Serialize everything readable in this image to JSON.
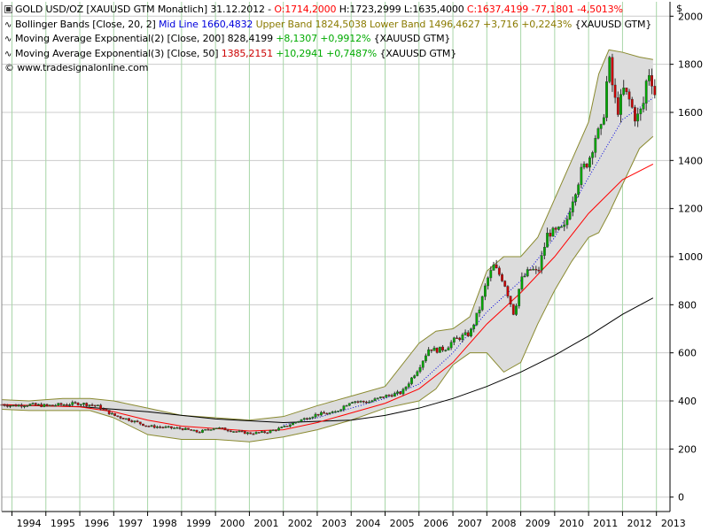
{
  "legend": {
    "line1": {
      "symbol": "GOLD USD/OZ [XAUUSD GTM  Monatlich] 31.12.2012 -",
      "open": "O:1714,2000",
      "high_low": "H:1723,2999 L:1635,4000",
      "close": "C:1637,4199 -77,1801 -4,5013%"
    },
    "line2": {
      "name": "Bollinger Bands [Close, 20, 2]",
      "mid": "Mid Line 1660,4832",
      "upper_lower": "Upper Band 1824,5038 Lower Band 1496,4627",
      "change": "+3,716 +0,2243%",
      "source": "{XAUUSD GTM}"
    },
    "line3": {
      "name": "Moving Average Exponential(2) [Close, 200]",
      "value": "828,4199",
      "change": "+8,1307 +0,9912%",
      "source": "{XAUUSD GTM}"
    },
    "line4": {
      "name": "Moving Average Exponential(3) [Close, 50]",
      "value": "1385,2151",
      "change": "+10,2941 +0,7487%",
      "source": "{XAUUSD GTM}"
    },
    "copyright": "© www.tradesignalonline.com"
  },
  "currency": "$",
  "colors": {
    "grid_vertical": "#a8d6a8",
    "grid_horizontal": "#cccccc",
    "band_fill": "#dcdcdc",
    "band_edge": "#8a8a30",
    "mid_line": "#0000dd",
    "ema200": "#000000",
    "ema50": "#ff0000",
    "candle_up": "#00aa00",
    "candle_down": "#cc0000"
  },
  "chart_data": {
    "type": "line",
    "title": "GOLD USD/OZ [XAUUSD GTM  Monatlich]",
    "x": [
      "1994",
      "1995",
      "1996",
      "1997",
      "1998",
      "1999",
      "2000",
      "2001",
      "2002",
      "2003",
      "2004",
      "2005",
      "2006",
      "2007",
      "2008",
      "2009",
      "2010",
      "2011",
      "2012",
      "2013"
    ],
    "xlim": [
      1993.7,
      2013.4
    ],
    "ylim": [
      -60,
      2060
    ],
    "yticks": [
      0,
      200,
      400,
      600,
      800,
      1000,
      1200,
      1400,
      1600,
      1800,
      2000
    ],
    "grid": true,
    "legend_position": "top-left",
    "series": [
      {
        "name": "GOLD USD/OZ",
        "kind": "candlestick",
        "x": [
          1993.7,
          1994.0,
          1994.5,
          1995.0,
          1995.5,
          1996.0,
          1996.5,
          1997.0,
          1997.5,
          1998.0,
          1998.5,
          1999.0,
          1999.5,
          2000.0,
          2000.5,
          2001.0,
          2001.5,
          2002.0,
          2002.5,
          2003.0,
          2003.5,
          2004.0,
          2004.5,
          2005.0,
          2005.5,
          2006.0,
          2006.3,
          2006.5,
          2006.8,
          2007.0,
          2007.3,
          2007.5,
          2007.8,
          2008.0,
          2008.2,
          2008.5,
          2008.8,
          2009.0,
          2009.3,
          2009.5,
          2009.8,
          2010.0,
          2010.3,
          2010.5,
          2010.8,
          2011.0,
          2011.2,
          2011.4,
          2011.6,
          2011.75,
          2011.9,
          2012.0,
          2012.2,
          2012.4,
          2012.6,
          2012.75,
          2012.9,
          2013.0
        ],
        "close": [
          385,
          380,
          385,
          380,
          385,
          390,
          380,
          340,
          320,
          295,
          290,
          285,
          270,
          290,
          275,
          265,
          270,
          290,
          320,
          345,
          350,
          400,
          395,
          420,
          435,
          540,
          620,
          610,
          620,
          650,
          670,
          680,
          790,
          900,
          960,
          900,
          760,
          900,
          950,
          930,
          1100,
          1100,
          1120,
          1230,
          1360,
          1400,
          1500,
          1530,
          1820,
          1660,
          1600,
          1700,
          1650,
          1570,
          1620,
          1780,
          1720,
          1637
        ]
      },
      {
        "name": "Mid Line",
        "x": [
          2002.0,
          2003.0,
          2004.0,
          2005.0,
          2006.0,
          2007.0,
          2008.0,
          2009.0,
          2010.0,
          2011.0,
          2012.0,
          2012.9
        ],
        "values": [
          300,
          330,
          370,
          410,
          470,
          600,
          770,
          900,
          1080,
          1330,
          1570,
          1660
        ]
      },
      {
        "name": "Upper Band",
        "x": [
          1993.7,
          1994.5,
          1995.5,
          1996.3,
          1997.0,
          1998.0,
          1999.0,
          2000.0,
          2001.0,
          2002.0,
          2003.0,
          2004.0,
          2005.0,
          2006.0,
          2006.5,
          2007.0,
          2007.5,
          2008.0,
          2008.5,
          2009.0,
          2009.5,
          2010.0,
          2010.5,
          2011.0,
          2011.3,
          2011.6,
          2012.0,
          2012.5,
          2012.9
        ],
        "values": [
          405,
          400,
          410,
          410,
          400,
          370,
          340,
          330,
          320,
          335,
          380,
          420,
          460,
          640,
          690,
          700,
          750,
          940,
          1000,
          1000,
          1080,
          1240,
          1400,
          1560,
          1760,
          1860,
          1850,
          1830,
          1820
        ]
      },
      {
        "name": "Lower Band",
        "x": [
          1993.7,
          1994.5,
          1995.5,
          1996.3,
          1997.0,
          1998.0,
          1999.0,
          2000.0,
          2001.0,
          2002.0,
          2003.0,
          2004.0,
          2005.0,
          2006.0,
          2006.5,
          2007.0,
          2007.5,
          2008.0,
          2008.5,
          2009.0,
          2009.5,
          2010.0,
          2010.5,
          2011.0,
          2011.3,
          2011.6,
          2012.0,
          2012.5,
          2012.9
        ],
        "values": [
          365,
          360,
          360,
          360,
          330,
          260,
          240,
          240,
          230,
          250,
          280,
          320,
          370,
          400,
          450,
          550,
          600,
          600,
          520,
          560,
          720,
          860,
          980,
          1080,
          1100,
          1180,
          1300,
          1450,
          1500
        ]
      },
      {
        "name": "Moving Average Exponential(2) [Close, 200]",
        "x": [
          1993.7,
          1996.0,
          1998.0,
          2000.0,
          2002.0,
          2004.0,
          2005.0,
          2006.0,
          2007.0,
          2008.0,
          2009.0,
          2010.0,
          2011.0,
          2012.0,
          2012.9
        ],
        "values": [
          383,
          376,
          355,
          325,
          310,
          320,
          340,
          370,
          410,
          460,
          520,
          590,
          670,
          760,
          828
        ]
      },
      {
        "name": "Moving Average Exponential(3) [Close, 50]",
        "x": [
          1993.7,
          1996.0,
          1997.0,
          1998.0,
          1999.0,
          2000.0,
          2001.0,
          2002.0,
          2003.0,
          2004.0,
          2005.0,
          2006.0,
          2007.0,
          2008.0,
          2009.0,
          2010.0,
          2011.0,
          2012.0,
          2012.9
        ],
        "values": [
          385,
          375,
          355,
          320,
          295,
          285,
          275,
          280,
          310,
          350,
          390,
          450,
          560,
          720,
          850,
          1000,
          1180,
          1320,
          1385
        ]
      }
    ]
  }
}
